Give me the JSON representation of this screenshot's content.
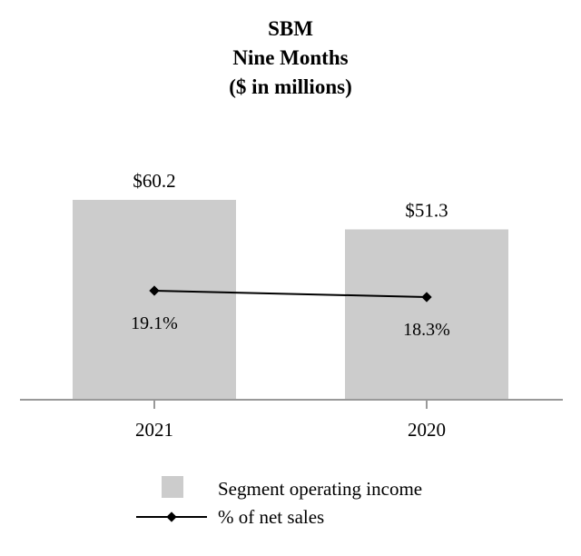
{
  "chart_data": {
    "type": "bar",
    "title_lines": [
      "SBM",
      "Nine Months",
      "($ in millions)"
    ],
    "categories": [
      "2021",
      "2020"
    ],
    "series": [
      {
        "name": "Segment operating income",
        "type": "bar",
        "values": [
          60.2,
          51.3
        ],
        "labels": [
          "$60.2",
          "$51.3"
        ]
      },
      {
        "name": "% of net sales",
        "type": "line",
        "values": [
          19.1,
          18.3
        ],
        "labels": [
          "19.1%",
          "18.3%"
        ]
      }
    ],
    "ylim": [
      0,
      60.2
    ],
    "grid": false,
    "legend_position": "bottom",
    "colors": {
      "bar": "#cccccc",
      "line": "#000000",
      "axis": "#999999"
    }
  }
}
